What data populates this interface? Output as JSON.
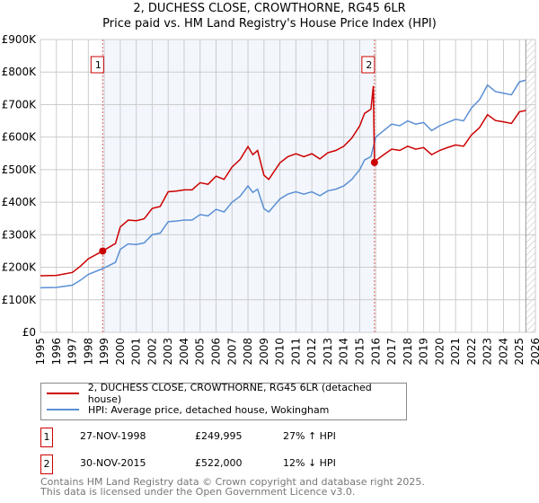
{
  "chart_data": {
    "type": "line",
    "title": "2, DUCHESS CLOSE, CROWTHORNE, RG45 6LR",
    "subtitle": "Price paid vs. HM Land Registry's House Price Index (HPI)",
    "xlim": [
      1995,
      2026
    ],
    "ylim": [
      0,
      900000
    ],
    "x_ticks": [
      "1995",
      "1996",
      "1997",
      "1998",
      "1999",
      "2000",
      "2001",
      "2002",
      "2003",
      "2004",
      "2005",
      "2006",
      "2007",
      "2008",
      "2009",
      "2010",
      "2011",
      "2012",
      "2013",
      "2014",
      "2015",
      "2016",
      "2017",
      "2018",
      "2019",
      "2020",
      "2021",
      "2022",
      "2023",
      "2024",
      "2025",
      "2026"
    ],
    "y_ticks": [
      {
        "v": 0,
        "l": "£0"
      },
      {
        "v": 100000,
        "l": "£100K"
      },
      {
        "v": 200000,
        "l": "£200K"
      },
      {
        "v": 300000,
        "l": "£300K"
      },
      {
        "v": 400000,
        "l": "£400K"
      },
      {
        "v": 500000,
        "l": "£500K"
      },
      {
        "v": 600000,
        "l": "£600K"
      },
      {
        "v": 700000,
        "l": "£700K"
      },
      {
        "v": 800000,
        "l": "£800K"
      },
      {
        "v": 900000,
        "l": "£900K"
      }
    ],
    "grid": true,
    "shaded_range": [
      1998.9,
      2015.92
    ],
    "forecast_hatch_from": 2025.4,
    "series": [
      {
        "name": "2, DUCHESS CLOSE, CROWTHORNE, RG45 6LR (detached house)",
        "color": "#cc0000",
        "x": [
          1995,
          1996,
          1997,
          1997.5,
          1998,
          1998.9,
          1999.7,
          2000,
          2000.5,
          2001,
          2001.5,
          2002,
          2002.5,
          2003,
          2003.5,
          2004,
          2004.5,
          2005,
          2005.5,
          2006,
          2006.5,
          2007,
          2007.5,
          2008,
          2008.3,
          2008.6,
          2009,
          2009.3,
          2010,
          2010.5,
          2011,
          2011.5,
          2012,
          2012.5,
          2013,
          2013.5,
          2014,
          2014.5,
          2015,
          2015.3,
          2015.7,
          2015.85,
          2015.92,
          2016,
          2016.5,
          2017,
          2017.5,
          2018,
          2018.5,
          2019,
          2019.5,
          2020,
          2020.5,
          2021,
          2021.5,
          2022,
          2022.5,
          2023,
          2023.5,
          2024,
          2024.5,
          2025,
          2025.4
        ],
        "y": [
          174000,
          175000,
          184000,
          203000,
          226000,
          249995,
          273000,
          324000,
          345000,
          343000,
          349000,
          381000,
          387000,
          432000,
          434000,
          438000,
          438000,
          460000,
          455000,
          480000,
          470000,
          508000,
          531000,
          571000,
          546000,
          559000,
          483000,
          470000,
          521000,
          540000,
          549000,
          540000,
          549000,
          533000,
          552000,
          559000,
          572000,
          597000,
          635000,
          673000,
          686000,
          757000,
          522000,
          528000,
          546000,
          563000,
          559000,
          572000,
          563000,
          568000,
          546000,
          559000,
          568000,
          576000,
          572000,
          607000,
          629000,
          669000,
          651000,
          647000,
          642000,
          678000,
          682000
        ]
      },
      {
        "name": "HPI: Average price, detached house, Wokingham",
        "color": "#5b8fd4",
        "x": [
          1995,
          1996,
          1997,
          1997.5,
          1998,
          1998.9,
          1999.7,
          2000,
          2000.5,
          2001,
          2001.5,
          2002,
          2002.5,
          2003,
          2003.5,
          2004,
          2004.5,
          2005,
          2005.5,
          2006,
          2006.5,
          2007,
          2007.5,
          2008,
          2008.3,
          2008.6,
          2009,
          2009.3,
          2010,
          2010.5,
          2011,
          2011.5,
          2012,
          2012.5,
          2013,
          2013.5,
          2014,
          2014.5,
          2015,
          2015.3,
          2015.7,
          2016,
          2016.5,
          2017,
          2017.5,
          2018,
          2018.5,
          2019,
          2019.5,
          2020,
          2020.5,
          2021,
          2021.5,
          2022,
          2022.5,
          2023,
          2023.5,
          2024,
          2024.5,
          2025,
          2025.4
        ],
        "y": [
          137000,
          138000,
          145000,
          160000,
          178000,
          196000,
          215000,
          255000,
          272000,
          270000,
          275000,
          300000,
          305000,
          340000,
          342000,
          345000,
          345000,
          362000,
          358000,
          378000,
          370000,
          400000,
          418000,
          450000,
          430000,
          440000,
          380000,
          370000,
          410000,
          425000,
          432000,
          425000,
          432000,
          420000,
          435000,
          440000,
          450000,
          470000,
          500000,
          530000,
          540000,
          600000,
          620000,
          640000,
          635000,
          650000,
          640000,
          645000,
          620000,
          635000,
          645000,
          655000,
          650000,
          690000,
          715000,
          760000,
          740000,
          735000,
          730000,
          770000,
          775000
        ]
      }
    ],
    "annotations": [
      {
        "label": "1",
        "x": 1998.9,
        "y": 249995
      },
      {
        "label": "2",
        "x": 2015.92,
        "y": 522000
      }
    ]
  },
  "table": [
    {
      "n": "1",
      "date": "27-NOV-1998",
      "price": "£249,995",
      "hpi": "27% ↑ HPI"
    },
    {
      "n": "2",
      "date": "30-NOV-2015",
      "price": "£522,000",
      "hpi": "12% ↓ HPI"
    }
  ],
  "footer": [
    "Contains HM Land Registry data © Crown copyright and database right 2025.",
    "This data is licensed under the Open Government Licence v3.0."
  ]
}
